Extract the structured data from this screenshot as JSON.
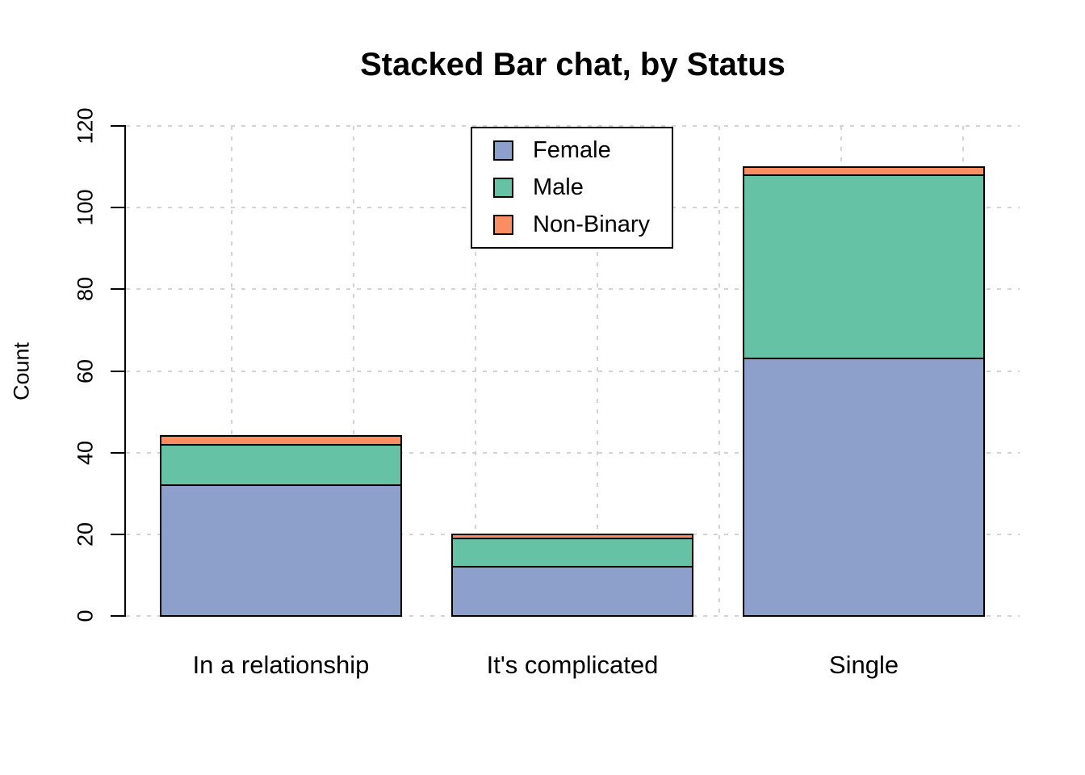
{
  "chart_data": {
    "type": "bar",
    "stacked": true,
    "title": "Stacked Bar chat, by Status",
    "xlabel": "",
    "ylabel": "Count",
    "categories": [
      "In a relationship",
      "It's complicated",
      "Single"
    ],
    "series": [
      {
        "name": "Female",
        "color": "#8DA0CB",
        "values": [
          32,
          12,
          63
        ]
      },
      {
        "name": "Male",
        "color": "#66C2A5",
        "values": [
          10,
          7,
          45
        ]
      },
      {
        "name": "Non-Binary",
        "color": "#FC8D62",
        "values": [
          2,
          1,
          2
        ]
      }
    ],
    "stack_totals": [
      44,
      20,
      110
    ],
    "ylim": [
      0,
      120
    ],
    "yticks": [
      0,
      20,
      40,
      60,
      80,
      100,
      120
    ],
    "grid": true,
    "grid_style": "dashed",
    "legend_position": "inside-top-center",
    "legend_entries": [
      "Female",
      "Male",
      "Non-Binary"
    ]
  },
  "style": {
    "background": "#FFFFFF",
    "grid_color": "#D3D3D3",
    "bar_border_color": "#000000",
    "text_color": "#000000"
  }
}
